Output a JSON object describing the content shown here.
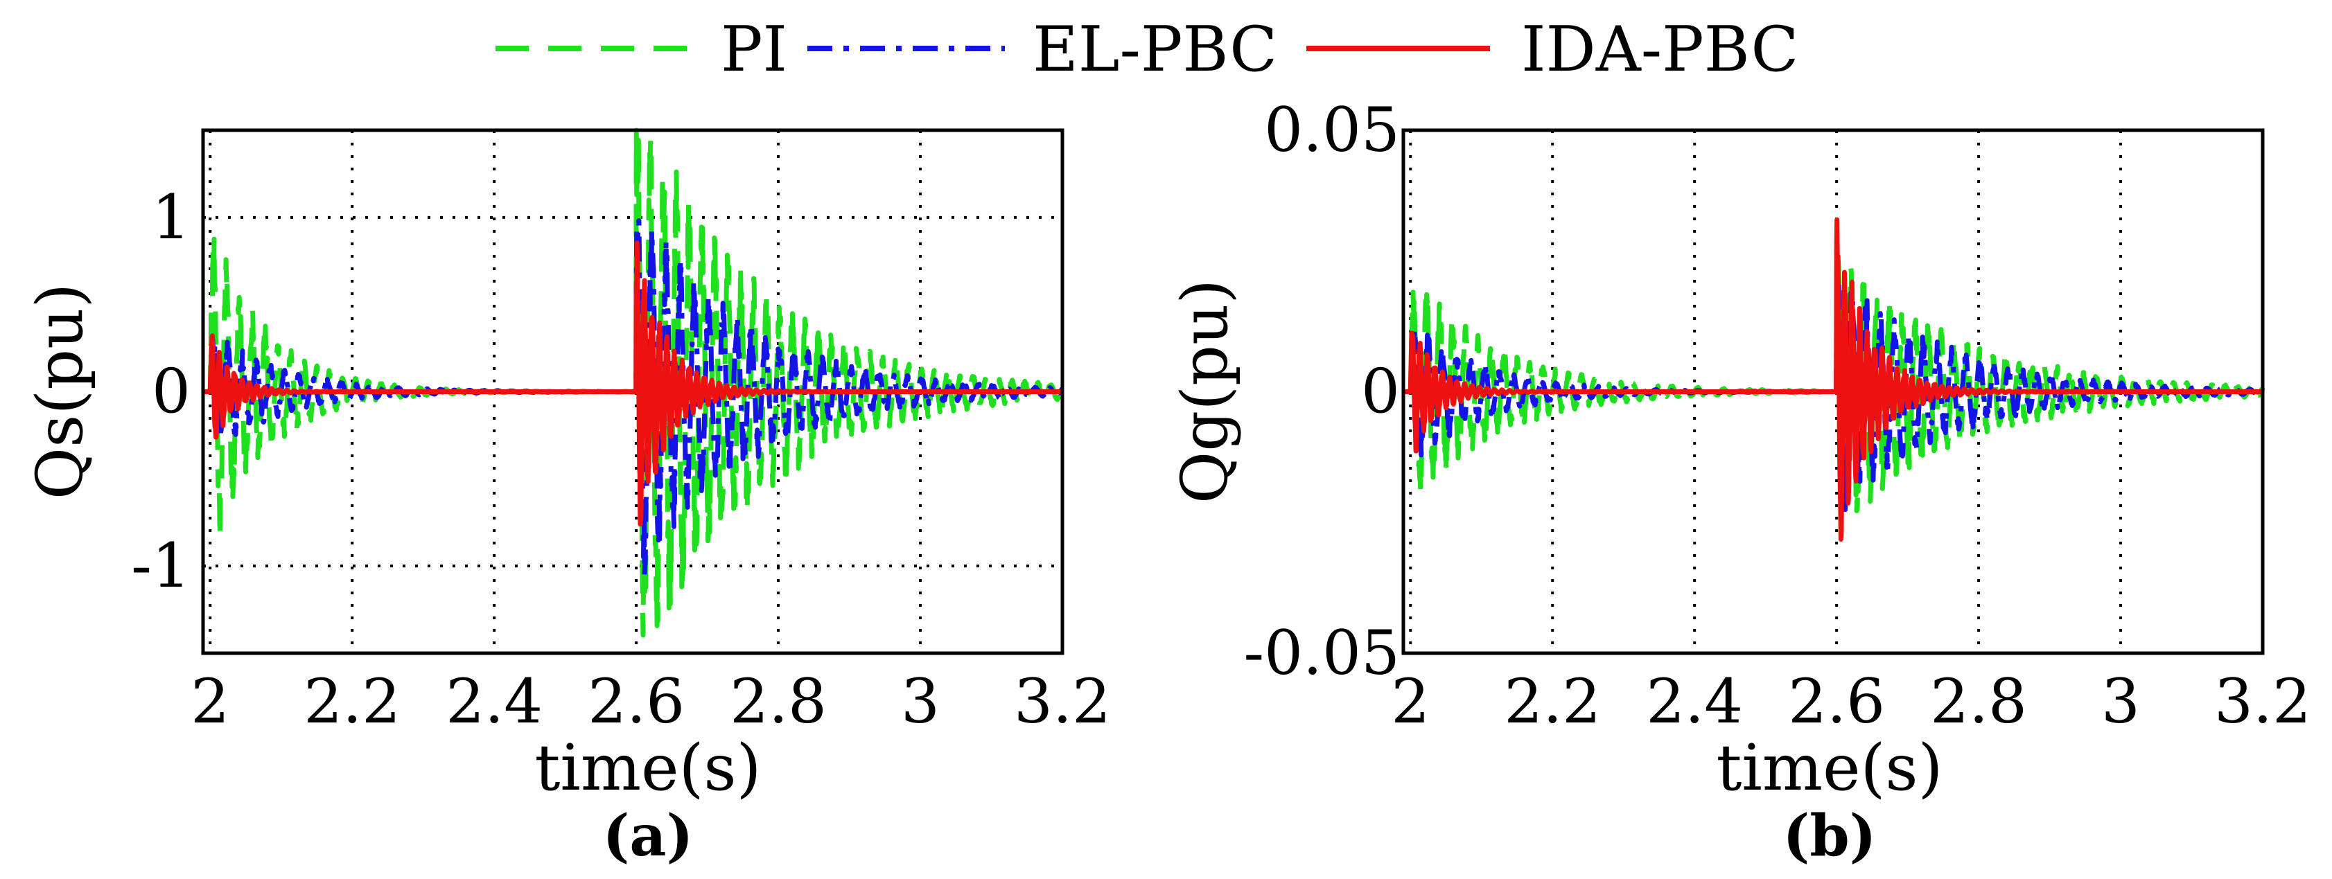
{
  "legend": {
    "entries": [
      {
        "label": "PI",
        "color": "#1fe01f",
        "style": "dashed"
      },
      {
        "label": "EL-PBC",
        "color": "#1414e6",
        "style": "dashdot"
      },
      {
        "label": "IDA-PBC",
        "color": "#ee1111",
        "style": "solid"
      }
    ]
  },
  "chart_data": [
    {
      "type": "line",
      "panel_label": "(a)",
      "xlabel": "time(s)",
      "ylabel": "Qs(pu)",
      "xlim": [
        1.99,
        3.2
      ],
      "ylim": [
        -1.5,
        1.5
      ],
      "xticks": [
        2,
        2.2,
        2.4,
        2.6,
        2.8,
        3,
        3.2
      ],
      "xtick_labels": [
        "2",
        "2.2",
        "2.4",
        "2.6",
        "2.8",
        "3",
        "3.2"
      ],
      "yticks": [
        -1,
        0,
        1
      ],
      "ytick_labels": [
        "-1",
        "0",
        "1"
      ],
      "grid": true,
      "series": [
        {
          "name": "PI",
          "t0": [
            2.0,
            2.6
          ],
          "amp": [
            0.82,
            1.5
          ],
          "decay": [
            0.08,
            0.16
          ],
          "freq": 55,
          "tail": 3.2
        },
        {
          "name": "EL-PBC",
          "t0": [
            2.0,
            2.6
          ],
          "amp": [
            0.3,
            0.95
          ],
          "decay": [
            0.1,
            0.15
          ],
          "freq": 50,
          "tail": 3.2
        },
        {
          "name": "IDA-PBC",
          "t0": [
            2.0,
            2.6
          ],
          "amp": [
            0.3,
            0.78
          ],
          "decay": [
            0.03,
            0.04
          ],
          "freq": 95,
          "tail": 3.2
        }
      ]
    },
    {
      "type": "line",
      "panel_label": "(b)",
      "xlabel": "time(s)",
      "ylabel": "Qg(pu)",
      "xlim": [
        1.99,
        3.2
      ],
      "ylim": [
        -0.05,
        0.05
      ],
      "xticks": [
        2,
        2.2,
        2.4,
        2.6,
        2.8,
        3,
        3.2
      ],
      "xtick_labels": [
        "2",
        "2.2",
        "2.4",
        "2.6",
        "2.8",
        "3",
        "3.2"
      ],
      "yticks": [
        -0.05,
        0,
        0.05
      ],
      "ytick_labels": [
        "-0.05",
        "0",
        "0.05"
      ],
      "grid": true,
      "series": [
        {
          "name": "PI",
          "t0": [
            2.0,
            2.6
          ],
          "amp": [
            0.02,
            0.022
          ],
          "decay": [
            0.12,
            0.18
          ],
          "freq": 55,
          "tail": 3.2
        },
        {
          "name": "EL-PBC",
          "t0": [
            2.0,
            2.6
          ],
          "amp": [
            0.012,
            0.02
          ],
          "decay": [
            0.1,
            0.15
          ],
          "freq": 50,
          "tail": 3.2
        },
        {
          "name": "IDA-PBC",
          "t0": [
            2.0,
            2.6
          ],
          "amp": [
            0.012,
            0.028
          ],
          "decay": [
            0.035,
            0.045
          ],
          "freq": 95,
          "tail": 3.2
        }
      ]
    }
  ]
}
